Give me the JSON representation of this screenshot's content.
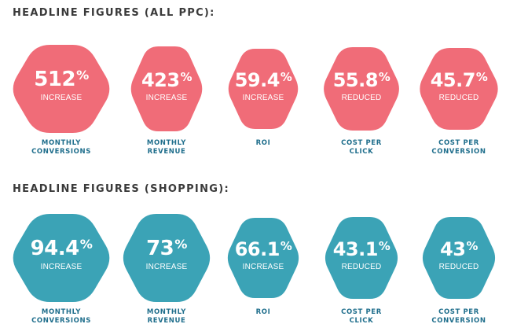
{
  "colors": {
    "ppc": "#f06c78",
    "shopping": "#3ba3b6",
    "caption": "#1f6e8c",
    "title": "#3a3a3a"
  },
  "sections": [
    {
      "title": "HEADLINE FIGURES (ALL PPC):",
      "items": [
        {
          "value": "512",
          "unit": "%",
          "label": "INCREASE",
          "caption1": "MONTHLY",
          "caption2": "CONVERSIONS"
        },
        {
          "value": "423",
          "unit": "%",
          "label": "INCREASE",
          "caption1": "MONTHLY",
          "caption2": "REVENUE"
        },
        {
          "value": "59.4",
          "unit": "%",
          "label": "INCREASE",
          "caption1": "ROI",
          "caption2": ""
        },
        {
          "value": "55.8",
          "unit": "%",
          "label": "REDUCED",
          "caption1": "COST PER",
          "caption2": "CLICK"
        },
        {
          "value": "45.7",
          "unit": "%",
          "label": "REDUCED",
          "caption1": "COST PER",
          "caption2": "CONVERSION"
        }
      ]
    },
    {
      "title": "HEADLINE FIGURES (SHOPPING):",
      "items": [
        {
          "value": "94.4",
          "unit": "%",
          "label": "INCREASE",
          "caption1": "MONTHLY",
          "caption2": "CONVERSIONS"
        },
        {
          "value": "73",
          "unit": "%",
          "label": "INCREASE",
          "caption1": "MONTHLY",
          "caption2": "REVENUE"
        },
        {
          "value": "66.1",
          "unit": "%",
          "label": "INCREASE",
          "caption1": "ROI",
          "caption2": ""
        },
        {
          "value": "43.1",
          "unit": "%",
          "label": "REDUCED",
          "caption1": "COST PER",
          "caption2": "CLICK"
        },
        {
          "value": "43",
          "unit": "%",
          "label": "REDUCED",
          "caption1": "COST PER",
          "caption2": "CONVERSION"
        }
      ]
    }
  ]
}
